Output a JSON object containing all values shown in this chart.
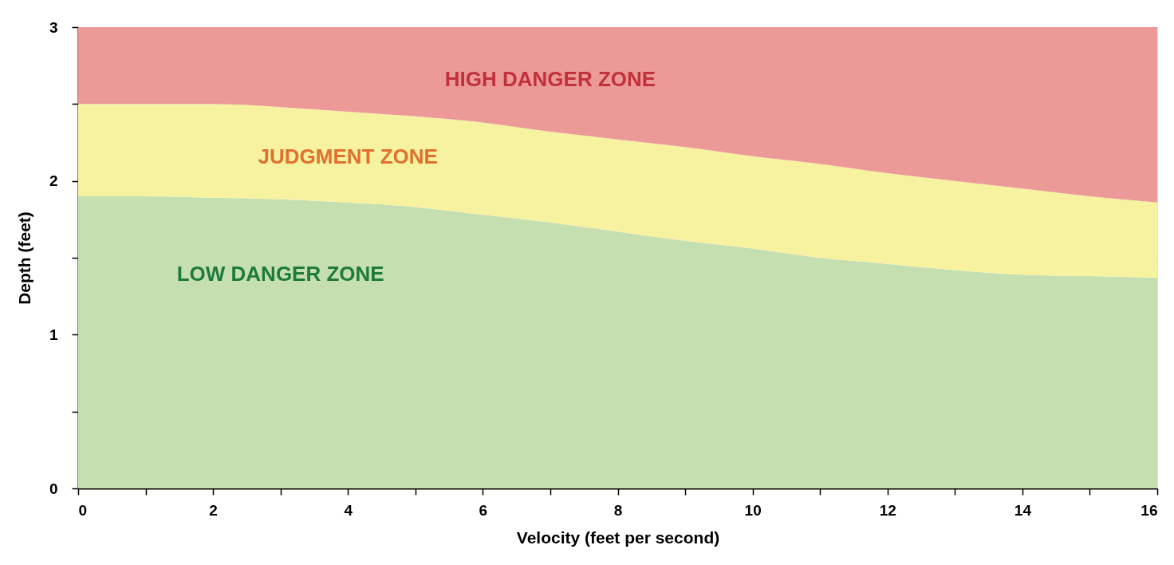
{
  "chart_data": {
    "type": "area",
    "stacked": true,
    "xlabel": "Velocity (feet per second)",
    "ylabel": "Depth (feet)",
    "x": [
      0,
      1,
      2,
      3,
      4,
      5,
      6,
      7,
      8,
      9,
      10,
      11,
      12,
      13,
      14,
      15,
      16
    ],
    "series": [
      {
        "name": "LOW DANGER ZONE",
        "color": "#c5dfb0",
        "values": [
          1.9,
          1.9,
          1.89,
          1.88,
          1.86,
          1.83,
          1.78,
          1.73,
          1.67,
          1.61,
          1.56,
          1.5,
          1.46,
          1.42,
          1.39,
          1.38,
          1.37
        ]
      },
      {
        "name": "JUDGMENT ZONE",
        "color": "#f7f2a0",
        "values": [
          0.6,
          0.6,
          0.61,
          0.6,
          0.59,
          0.59,
          0.6,
          0.59,
          0.6,
          0.61,
          0.6,
          0.61,
          0.59,
          0.58,
          0.56,
          0.52,
          0.49
        ]
      },
      {
        "name": "HIGH DANGER ZONE",
        "color": "#ec9a98",
        "values": [
          0.5,
          0.5,
          0.5,
          0.52,
          0.55,
          0.58,
          0.62,
          0.68,
          0.73,
          0.78,
          0.84,
          0.89,
          0.95,
          1.0,
          1.05,
          1.1,
          1.14
        ]
      }
    ],
    "xlim": [
      0,
      16
    ],
    "ylim": [
      0,
      3
    ],
    "xticks": [
      0,
      {
        "value": 1,
        "label": null
      },
      2,
      {
        "value": 3,
        "label": null
      },
      4,
      {
        "value": 5,
        "label": null
      },
      6,
      {
        "value": 7,
        "label": null
      },
      8,
      {
        "value": 9,
        "label": null
      },
      10,
      {
        "value": 11,
        "label": null
      },
      12,
      {
        "value": 13,
        "label": null
      },
      14,
      {
        "value": 15,
        "label": null
      },
      16
    ],
    "yticks": [
      0,
      {
        "value": 0.5,
        "label": null
      },
      1,
      {
        "value": 1.5,
        "label": null
      },
      2,
      {
        "value": 2.5,
        "label": null
      },
      3
    ],
    "grid": true,
    "legend": false
  }
}
